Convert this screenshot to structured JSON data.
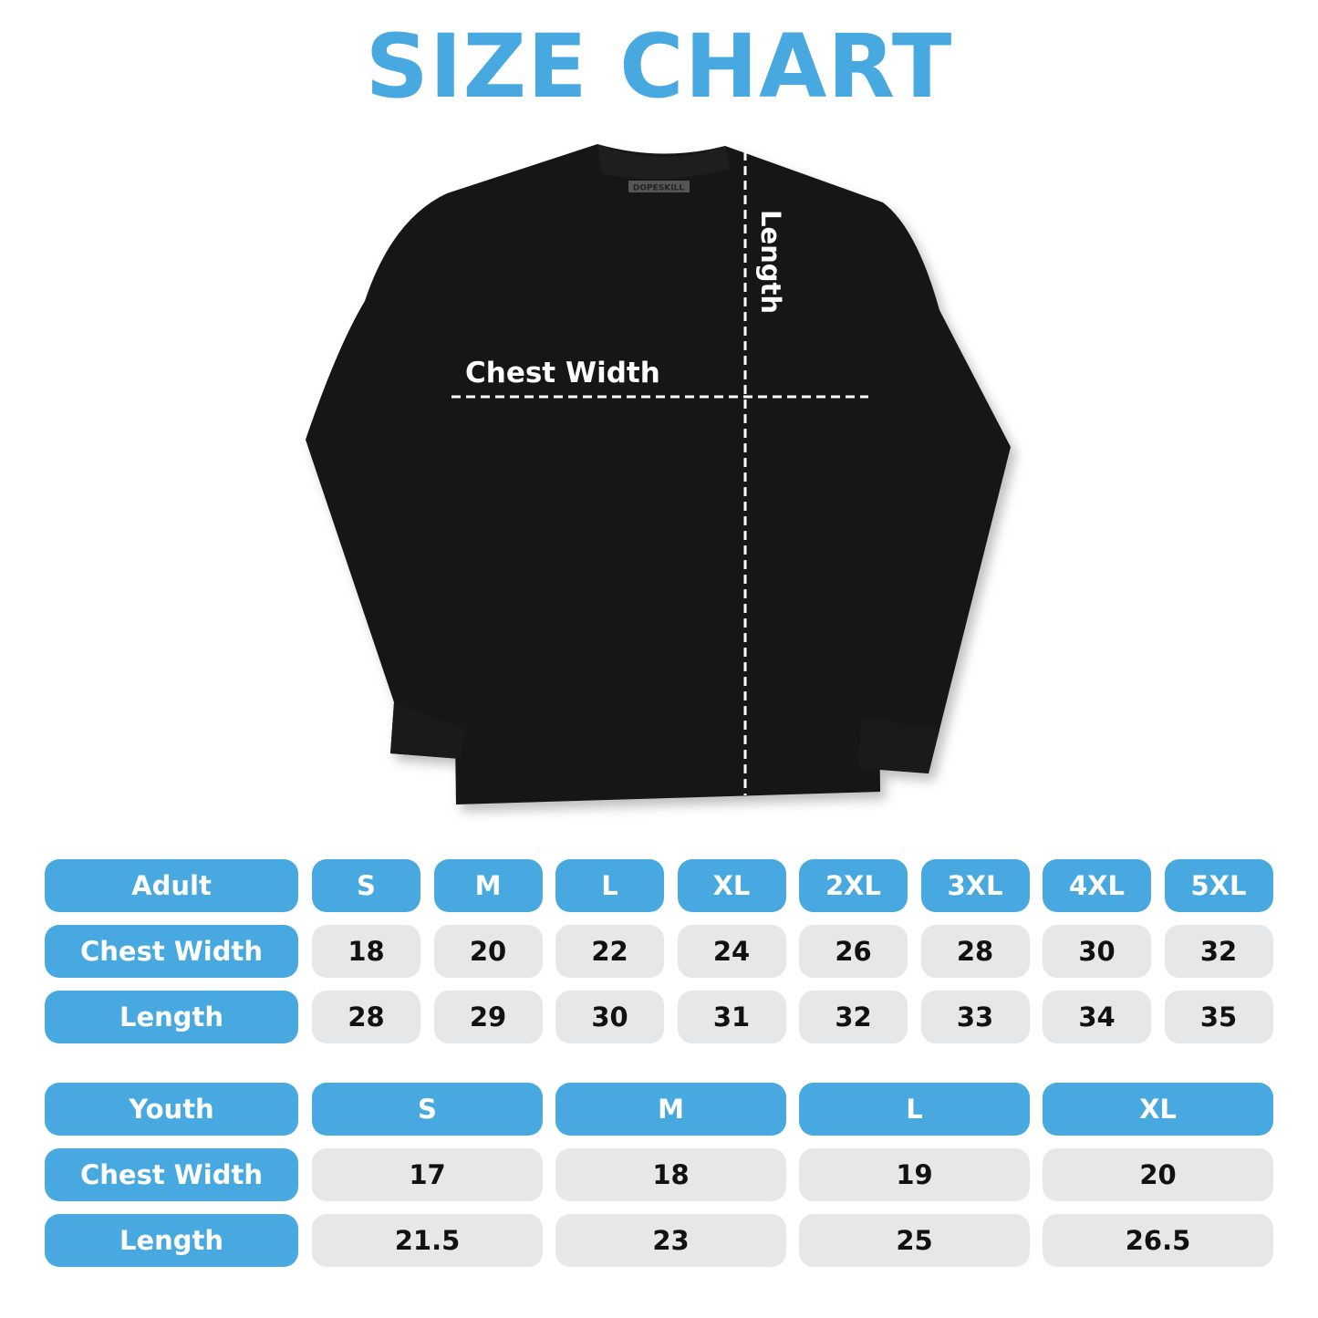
{
  "title": "SIZE CHART",
  "colors": {
    "accent": "#47a9e0",
    "value_cell": "#e6e7e9",
    "shirt": "#111111"
  },
  "shirt": {
    "brand_tag": "DOPESKILL",
    "chest_label": "Chest Width",
    "length_label": "Length"
  },
  "adult": {
    "header": "Adult",
    "sizes": [
      "S",
      "M",
      "L",
      "XL",
      "2XL",
      "3XL",
      "4XL",
      "5XL"
    ],
    "rows": [
      {
        "label": "Chest Width",
        "values": [
          "18",
          "20",
          "22",
          "24",
          "26",
          "28",
          "30",
          "32"
        ]
      },
      {
        "label": "Length",
        "values": [
          "28",
          "29",
          "30",
          "31",
          "32",
          "33",
          "34",
          "35"
        ]
      }
    ]
  },
  "youth": {
    "header": "Youth",
    "sizes": [
      "S",
      "M",
      "L",
      "XL"
    ],
    "rows": [
      {
        "label": "Chest Width",
        "values": [
          "17",
          "18",
          "19",
          "20"
        ]
      },
      {
        "label": "Length",
        "values": [
          "21.5",
          "23",
          "25",
          "26.5"
        ]
      }
    ]
  }
}
